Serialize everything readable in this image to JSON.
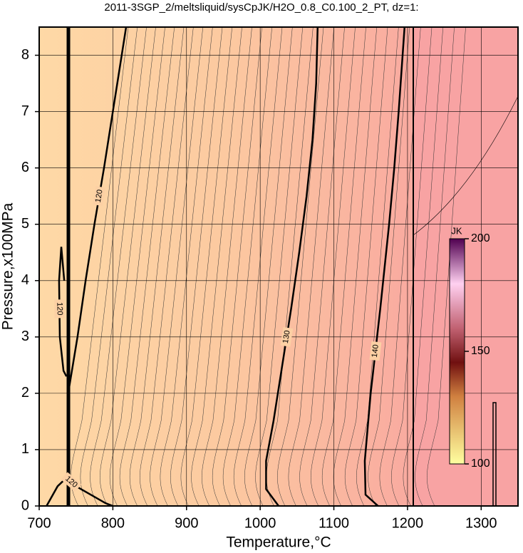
{
  "chart_data": {
    "type": "contour",
    "title": "2011-3SGP_2/meltsliquid/sysCpJK/H2O_0.8_C0.100_2_PT, dz=1:",
    "x_label": "Temperature,°C",
    "y_label": "Pressure,x100MPa",
    "xlim": [
      700,
      1350
    ],
    "ylim": [
      0,
      8.5
    ],
    "xticks": [
      700,
      800,
      900,
      1000,
      1100,
      1200,
      1300
    ],
    "yticks": [
      0,
      1,
      2,
      3,
      4,
      5,
      6,
      7,
      8
    ],
    "grid": true,
    "contours": [
      {
        "level": 120,
        "x": [
          740,
          752,
          763,
          775,
          788,
          800,
          812,
          818
        ],
        "y": [
          2.05,
          3,
          4,
          5,
          6,
          7,
          8,
          8.5
        ]
      },
      {
        "level": 120,
        "x": [
          737,
          733,
          728,
          727,
          730,
          734
        ],
        "y": [
          2.3,
          2.4,
          3,
          4,
          4.6,
          4.0
        ]
      },
      {
        "level": 120,
        "x": [
          710,
          725,
          737,
          750,
          770,
          790,
          800
        ],
        "y": [
          0,
          0.35,
          0.5,
          0.35,
          0.2,
          0.05,
          0
        ]
      },
      {
        "level": 130,
        "x": [
          1025,
          1008,
          1008,
          1018,
          1030,
          1042,
          1053,
          1063,
          1071,
          1076,
          1078
        ],
        "y": [
          0,
          0.3,
          0.8,
          1.5,
          2.5,
          3.5,
          4.5,
          5.5,
          6.5,
          7.5,
          8.5
        ]
      },
      {
        "level": 140,
        "x": [
          1160,
          1143,
          1142,
          1150,
          1163,
          1175,
          1182,
          1188,
          1196
        ],
        "y": [
          0,
          0.2,
          0.8,
          2,
          3.5,
          5,
          6,
          7,
          8.5
        ]
      }
    ],
    "colorbar": {
      "label": "JK",
      "lim": [
        100,
        200
      ],
      "ticks": [
        100,
        150,
        200
      ]
    }
  }
}
